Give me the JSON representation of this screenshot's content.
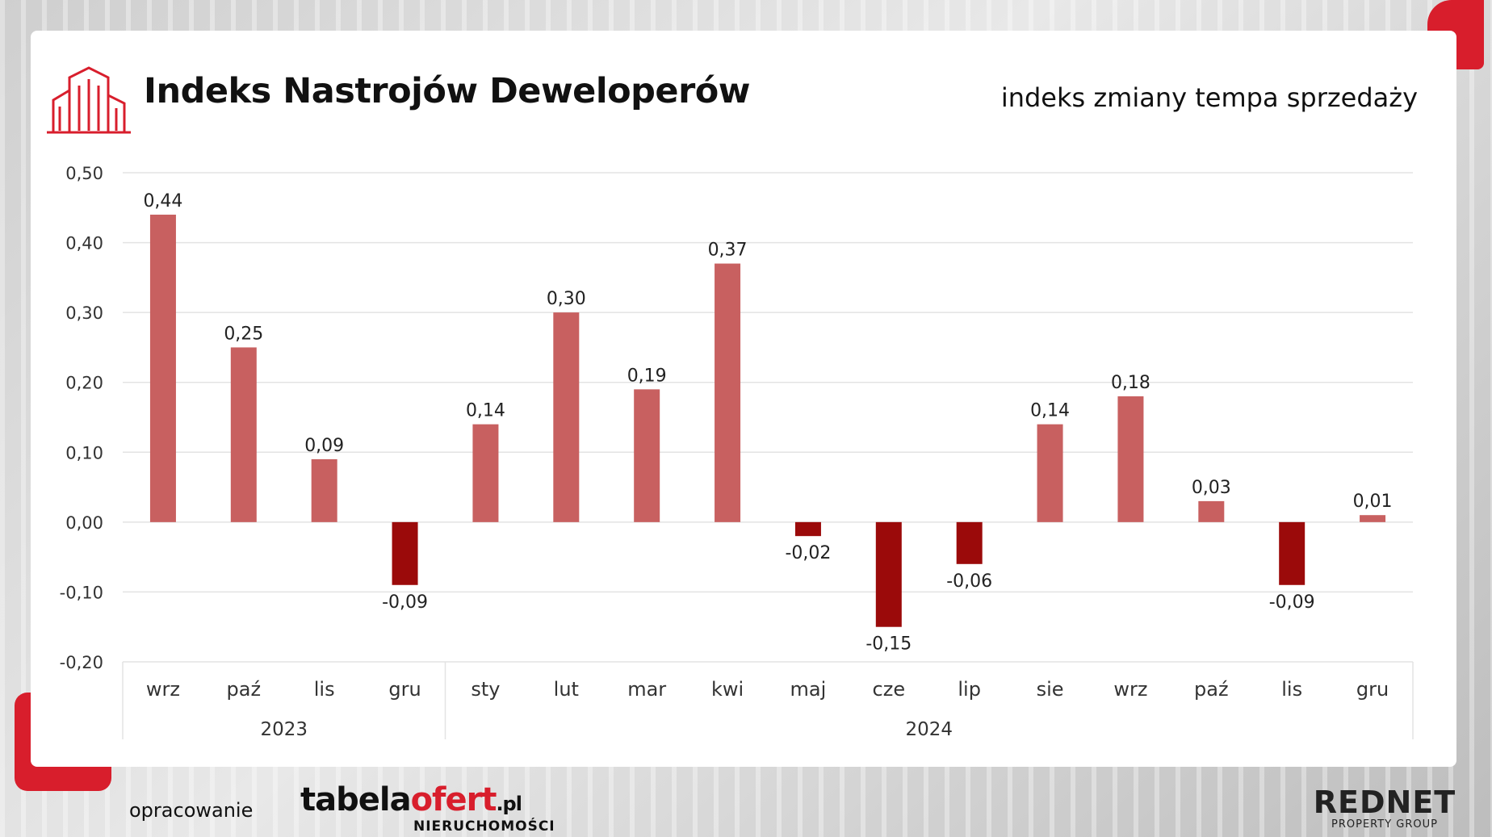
{
  "header": {
    "title": "Indeks Nastrojów Deweloperów",
    "subtitle": "indeks zmiany tempa sprzedaży",
    "logo_icon": "buildings-icon"
  },
  "footer": {
    "prepared_label": "opracowanie",
    "brand_tabela": {
      "part1": "tabela",
      "part2": "ofert",
      "part3": ".pl",
      "sub": "NIERUCHOMOŚCI"
    },
    "brand_rednet": {
      "name": "REDNET",
      "sub": "PROPERTY GROUP"
    }
  },
  "colors": {
    "positive": "#c86060",
    "negative": "#9b0a0a",
    "accent": "#d81e2c",
    "grid": "#e3e3e3",
    "axis_text": "#333333"
  },
  "chart_data": {
    "type": "bar",
    "categories": [
      "wrz",
      "paź",
      "lis",
      "gru",
      "sty",
      "lut",
      "mar",
      "kwi",
      "maj",
      "cze",
      "lip",
      "sie",
      "wrz",
      "paź",
      "lis",
      "gru"
    ],
    "groups": [
      {
        "label": "2023",
        "count": 4
      },
      {
        "label": "2024",
        "count": 12
      }
    ],
    "values": [
      0.44,
      0.25,
      0.09,
      -0.09,
      0.14,
      0.3,
      0.19,
      0.37,
      -0.02,
      -0.15,
      -0.06,
      0.14,
      0.18,
      0.03,
      -0.09,
      0.01
    ],
    "value_labels": [
      "0,44",
      "0,25",
      "0,09",
      "-0,09",
      "0,14",
      "0,30",
      "0,19",
      "0,37",
      "-0,02",
      "-0,15",
      "-0,06",
      "0,14",
      "0,18",
      "0,03",
      "-0,09",
      "0,01"
    ],
    "yticks": [
      0.5,
      0.4,
      0.3,
      0.2,
      0.1,
      0.0,
      -0.1,
      -0.2
    ],
    "ytick_labels": [
      "0,50",
      "0,40",
      "0,30",
      "0,20",
      "0,10",
      "0,00",
      "-0,10",
      "-0,20"
    ],
    "ylim": [
      -0.2,
      0.5
    ],
    "grid": true,
    "legend": "none"
  }
}
